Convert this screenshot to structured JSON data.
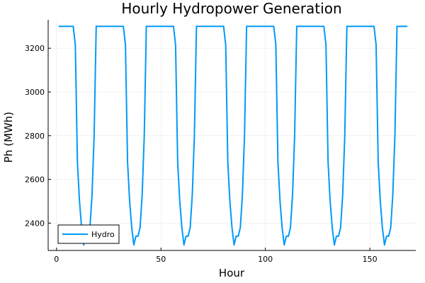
{
  "chart_data": {
    "type": "line",
    "title": "Hourly Hydropower Generation",
    "xlabel": "Hour",
    "ylabel": "Ph (MWh)",
    "xlim": [
      -4,
      172
    ],
    "ylim": [
      2275,
      3330
    ],
    "xticks": [
      0,
      50,
      100,
      150
    ],
    "yticks": [
      2400,
      2600,
      2800,
      3000,
      3200
    ],
    "grid": true,
    "legend_position": "bottom-left",
    "series": [
      {
        "name": "Hydro",
        "color": "#009af9",
        "x": [
          1,
          2,
          3,
          4,
          5,
          6,
          7,
          8,
          9,
          10,
          11,
          12,
          13,
          14,
          15,
          16,
          17,
          18,
          19,
          20,
          21,
          22,
          23,
          24,
          25,
          26,
          27,
          28,
          29,
          30,
          31,
          32,
          33,
          34,
          35,
          36,
          37,
          38,
          39,
          40,
          41,
          42,
          43,
          44,
          45,
          46,
          47,
          48,
          49,
          50,
          51,
          52,
          53,
          54,
          55,
          56,
          57,
          58,
          59,
          60,
          61,
          62,
          63,
          64,
          65,
          66,
          67,
          68,
          69,
          70,
          71,
          72,
          73,
          74,
          75,
          76,
          77,
          78,
          79,
          80,
          81,
          82,
          83,
          84,
          85,
          86,
          87,
          88,
          89,
          90,
          91,
          92,
          93,
          94,
          95,
          96,
          97,
          98,
          99,
          100,
          101,
          102,
          103,
          104,
          105,
          106,
          107,
          108,
          109,
          110,
          111,
          112,
          113,
          114,
          115,
          116,
          117,
          118,
          119,
          120,
          121,
          122,
          123,
          124,
          125,
          126,
          127,
          128,
          129,
          130,
          131,
          132,
          133,
          134,
          135,
          136,
          137,
          138,
          139,
          140,
          141,
          142,
          143,
          144,
          145,
          146,
          147,
          148,
          149,
          150,
          151,
          152,
          153,
          154,
          155,
          156,
          157,
          158,
          159,
          160,
          161,
          162,
          163,
          164,
          165,
          166,
          167,
          168
        ],
        "y": [
          3300,
          3300,
          3300,
          3300,
          3300,
          3300,
          3300,
          3300,
          3215,
          2680,
          2500,
          2380,
          2300,
          2340,
          2340,
          2380,
          2530,
          2800,
          3300,
          3300,
          3300,
          3300,
          3300,
          3300,
          3300,
          3300,
          3300,
          3300,
          3300,
          3300,
          3300,
          3300,
          3215,
          2680,
          2500,
          2380,
          2300,
          2340,
          2340,
          2380,
          2530,
          2800,
          3300,
          3300,
          3300,
          3300,
          3300,
          3300,
          3300,
          3300,
          3300,
          3300,
          3300,
          3300,
          3300,
          3300,
          3215,
          2680,
          2500,
          2380,
          2300,
          2340,
          2340,
          2380,
          2530,
          2800,
          3300,
          3300,
          3300,
          3300,
          3300,
          3300,
          3300,
          3300,
          3300,
          3300,
          3300,
          3300,
          3300,
          3300,
          3215,
          2680,
          2500,
          2380,
          2300,
          2340,
          2340,
          2380,
          2530,
          2800,
          3300,
          3300,
          3300,
          3300,
          3300,
          3300,
          3300,
          3300,
          3300,
          3300,
          3300,
          3300,
          3300,
          3300,
          3215,
          2680,
          2500,
          2380,
          2300,
          2340,
          2340,
          2380,
          2530,
          2800,
          3300,
          3300,
          3300,
          3300,
          3300,
          3300,
          3300,
          3300,
          3300,
          3300,
          3300,
          3300,
          3300,
          3300,
          3215,
          2680,
          2500,
          2380,
          2300,
          2340,
          2340,
          2380,
          2530,
          2800,
          3300,
          3300,
          3300,
          3300,
          3300,
          3300,
          3300,
          3300,
          3300,
          3300,
          3300,
          3300,
          3300,
          3300,
          3215,
          2680,
          2500,
          2380,
          2300,
          2340,
          2340,
          2380,
          2530,
          2800,
          3300,
          3300,
          3300,
          3300,
          3300,
          3300
        ]
      }
    ]
  }
}
